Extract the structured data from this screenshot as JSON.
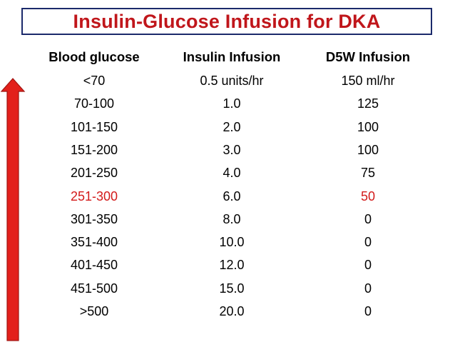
{
  "title": "Insulin-Glucose Infusion for DKA",
  "colors": {
    "title": "#c0161b",
    "title_border": "#1b2a6b",
    "arrow": "#e3201b",
    "highlight": "#d31a1a"
  },
  "table": {
    "headers": [
      "Blood glucose",
      "Insulin Infusion",
      "D5W Infusion"
    ],
    "rows": [
      [
        "<70",
        "0.5 units/hr",
        "150 ml/hr"
      ],
      [
        "70-100",
        "1.0",
        "125"
      ],
      [
        "101-150",
        "2.0",
        "100"
      ],
      [
        "151-200",
        "3.0",
        "100"
      ],
      [
        "201-250",
        "4.0",
        "75"
      ],
      [
        "251-300",
        "6.0",
        "50"
      ],
      [
        "301-350",
        "8.0",
        "0"
      ],
      [
        "351-400",
        "10.0",
        "0"
      ],
      [
        "401-450",
        "12.0",
        "0"
      ],
      [
        "451-500",
        "15.0",
        "0"
      ],
      [
        ">500",
        "20.0",
        "0"
      ]
    ],
    "highlighted_row": 5
  },
  "arrow_icon": "up-arrow-icon"
}
